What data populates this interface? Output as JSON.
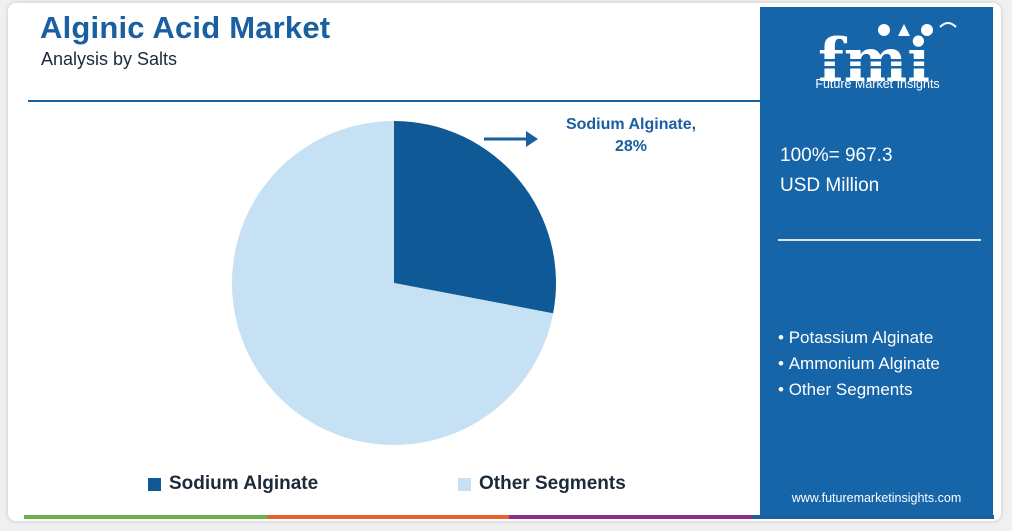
{
  "chart_data": {
    "type": "pie",
    "title": "Alginic Acid Market",
    "subtitle": "Analysis by Salts",
    "slices": [
      {
        "name": "Sodium Alginate",
        "value": 28,
        "color": "#0f5a96"
      },
      {
        "name": "Other Segments",
        "value": 72,
        "color": "#c5e1f3"
      }
    ],
    "callout": {
      "line1": "Sodium Alginate,",
      "line2": "28%"
    },
    "legend": [
      "Sodium Alginate",
      "Other Segments"
    ],
    "legend_placement": "bottom"
  },
  "side_panel": {
    "logo_letters": "fmi",
    "logo_text": "Future Market Insights",
    "total_line1": "100%= 967.3",
    "total_line2": "USD Million",
    "other_segments": [
      "Potassium Alginate",
      "Ammonium Alginate",
      "Other Segments"
    ],
    "website": "www.futuremarketinsights.com"
  },
  "colors": {
    "title": "#1a5fa0",
    "panel_bg": "#1565a8",
    "bottom_bar": [
      "#6ab04c",
      "#e8632b",
      "#8b2e8f",
      "#1a5fa0"
    ]
  }
}
